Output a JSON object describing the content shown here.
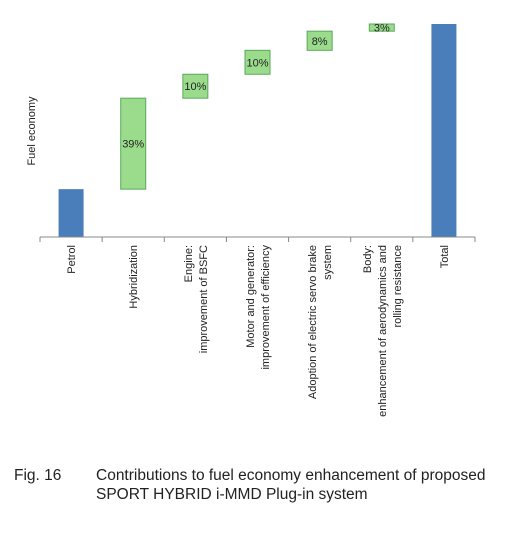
{
  "chart_data": {
    "type": "bar",
    "subtype": "waterfall",
    "ylabel": "Fuel economy",
    "categories": [
      [
        "Petrol"
      ],
      [
        "Hybridization"
      ],
      [
        "Engine:",
        "improvement of BSFC"
      ],
      [
        "Motor and generator:",
        "improvement of efficiency"
      ],
      [
        "Adoption of electric servo brake",
        "system"
      ],
      [
        "Body:",
        "enhancement of aerodynamics and",
        "rolling resistance"
      ],
      [
        "Total"
      ]
    ],
    "bars": [
      {
        "kind": "total",
        "start": 0,
        "end": 1.0,
        "label": ""
      },
      {
        "kind": "increment",
        "start": 1.0,
        "end": 2.9,
        "label": "39%"
      },
      {
        "kind": "increment",
        "start": 2.9,
        "end": 3.4,
        "label": "10%"
      },
      {
        "kind": "increment",
        "start": 3.4,
        "end": 3.9,
        "label": "10%"
      },
      {
        "kind": "increment",
        "start": 3.9,
        "end": 4.3,
        "label": "8%"
      },
      {
        "kind": "increment",
        "start": 4.3,
        "end": 4.45,
        "label": "3%"
      },
      {
        "kind": "total",
        "start": 0,
        "end": 4.45,
        "label": ""
      }
    ],
    "ylim": [
      0,
      4.45
    ],
    "colors": {
      "total_fill": "#4a7ebb",
      "increment_fill": "#9bdc8c",
      "increment_stroke": "#5aa85a",
      "axis": "#888888"
    }
  },
  "caption": {
    "number": "Fig. 16",
    "text": "Contributions to fuel economy enhancement of proposed SPORT HYBRID i-MMD Plug-in system"
  }
}
